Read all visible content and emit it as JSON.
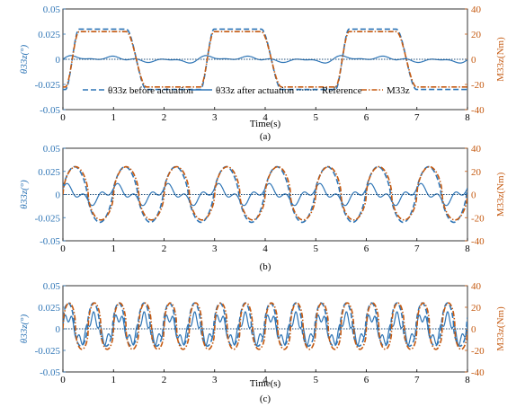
{
  "figure": {
    "x_axis_label": "Time(s)",
    "legend_entries": {
      "before": "θ33z before actuation",
      "after": "θ33z after actuation",
      "reference": "Reference",
      "moment": "M33z"
    }
  },
  "colors": {
    "theta_before": "#2e75b6",
    "theta_after": "#2e75b6",
    "reference": "#1f4e79",
    "moment": "#c55a11",
    "left_axis": "#2e75b6",
    "right_axis": "#c55a11",
    "axis": "#000000"
  },
  "chart_data": [
    {
      "type": "line",
      "panel": "(a)",
      "xlabel": "Time(s)",
      "ylabel_left": "θ33z(°)",
      "ylabel_right": "M33z(Nm)",
      "xlim": [
        0,
        8
      ],
      "ylim_left": [
        -0.05,
        0.05
      ],
      "ylim_right": [
        -40,
        40
      ],
      "x_ticks": [
        "0",
        "1",
        "2",
        "3",
        "4",
        "5",
        "6",
        "7",
        "8"
      ],
      "y_ticks_left": [
        "0.05",
        "0.025",
        "0",
        "-0.025",
        "-0.05"
      ],
      "y_ticks_right": [
        "40",
        "20",
        "0",
        "-20",
        "-40"
      ],
      "legend": "bottom-center",
      "period_s": 2.67,
      "series": [
        {
          "name": "θ33z before actuation",
          "axis": "left",
          "style": "dashed",
          "peak": 0.03,
          "trough": -0.03,
          "shape": "flat-topped"
        },
        {
          "name": "θ33z after actuation",
          "axis": "left",
          "style": "solid",
          "amplitude": 0.005
        },
        {
          "name": "Reference",
          "axis": "left",
          "style": "dotted",
          "value": 0
        },
        {
          "name": "M33z",
          "axis": "right",
          "style": "dash-dot",
          "peak": 22,
          "trough": -22,
          "shape": "flat-topped"
        }
      ]
    },
    {
      "type": "line",
      "panel": "(b)",
      "xlabel": "",
      "ylabel_left": "θ33z(°)",
      "ylabel_right": "M33z(Nm)",
      "xlim": [
        0,
        8
      ],
      "ylim_left": [
        -0.05,
        0.05
      ],
      "ylim_right": [
        -40,
        40
      ],
      "x_ticks": [
        "0",
        "1",
        "2",
        "3",
        "4",
        "5",
        "6",
        "7",
        "8"
      ],
      "y_ticks_left": [
        "0.05",
        "0.025",
        "0",
        "-0.025",
        "-0.05"
      ],
      "y_ticks_right": [
        "40",
        "20",
        "0",
        "-20",
        "-40"
      ],
      "period_s": 1.0,
      "series": [
        {
          "name": "θ33z before actuation",
          "axis": "left",
          "style": "dashed",
          "peak": 0.03,
          "trough": -0.03
        },
        {
          "name": "θ33z after actuation",
          "axis": "left",
          "style": "solid",
          "amplitude": 0.012
        },
        {
          "name": "Reference",
          "axis": "left",
          "style": "dotted",
          "value": 0
        },
        {
          "name": "M33z",
          "axis": "right",
          "style": "dash-dot",
          "peak": 24,
          "trough": -22
        }
      ]
    },
    {
      "type": "line",
      "panel": "(c)",
      "xlabel": "Time(s)",
      "ylabel_left": "θ33z(°)",
      "ylabel_right": "M33z(Nm)",
      "xlim": [
        0,
        8
      ],
      "ylim_left": [
        -0.05,
        0.05
      ],
      "ylim_right": [
        -40,
        40
      ],
      "x_ticks": [
        "0",
        "1",
        "2",
        "3",
        "4",
        "5",
        "6",
        "7",
        "8"
      ],
      "y_ticks_left": [
        "0.05",
        "0.025",
        "0",
        "-0.025",
        "-0.05"
      ],
      "y_ticks_right": [
        "40",
        "20",
        "0",
        "-20",
        "-40"
      ],
      "period_s": 0.5,
      "series": [
        {
          "name": "θ33z before actuation",
          "axis": "left",
          "style": "dashed",
          "peak": 0.03,
          "trough": -0.02
        },
        {
          "name": "θ33z after actuation",
          "axis": "left",
          "style": "solid",
          "peak": 0.02,
          "trough": -0.02
        },
        {
          "name": "Reference",
          "axis": "left",
          "style": "dotted",
          "value": 0
        },
        {
          "name": "M33z",
          "axis": "right",
          "style": "dash-dot",
          "peak": 24,
          "trough": -19
        }
      ]
    }
  ]
}
